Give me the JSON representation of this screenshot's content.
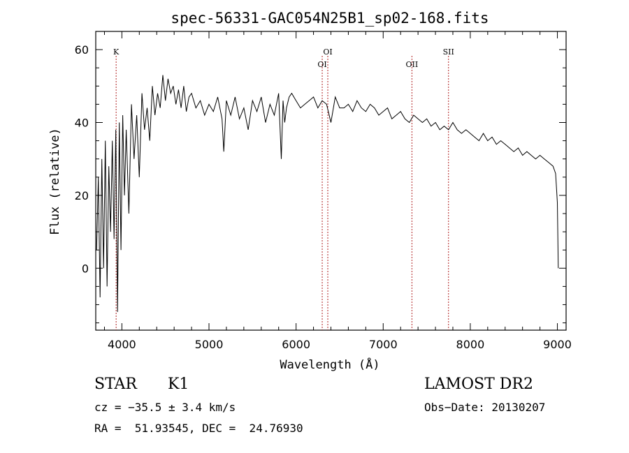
{
  "chart_data": {
    "type": "line",
    "title": "spec-56331-GAC054N25B1_sp02-168.fits",
    "xlabel": "Wavelength (Å)",
    "ylabel": "Flux (relative)",
    "xlim": [
      3700,
      9100
    ],
    "ylim": [
      -17,
      65
    ],
    "x_ticks": [
      4000,
      5000,
      6000,
      7000,
      8000,
      9000
    ],
    "y_ticks": [
      0,
      20,
      40,
      60
    ],
    "x_tick_labels": [
      "4000",
      "5000",
      "6000",
      "7000",
      "8000",
      "9000"
    ],
    "y_tick_labels": [
      "0",
      "20",
      "40",
      "60"
    ],
    "grid": false,
    "series": [
      {
        "x": [
          3710,
          3730,
          3750,
          3770,
          3790,
          3810,
          3830,
          3850,
          3870,
          3890,
          3910,
          3930,
          3950,
          3970,
          3990,
          4010,
          4030,
          4050,
          4080,
          4110,
          4140,
          4170,
          4200,
          4230,
          4260,
          4290,
          4320,
          4350,
          4380,
          4410,
          4440,
          4470,
          4500,
          4530,
          4560,
          4590,
          4620,
          4650,
          4680,
          4710,
          4740,
          4770,
          4800,
          4850,
          4900,
          4950,
          5000,
          5050,
          5100,
          5150,
          5170,
          5200,
          5250,
          5300,
          5350,
          5400,
          5450,
          5500,
          5550,
          5600,
          5650,
          5700,
          5750,
          5800,
          5830,
          5850,
          5870,
          5890,
          5920,
          5950,
          6000,
          6050,
          6100,
          6150,
          6200,
          6250,
          6300,
          6350,
          6400,
          6450,
          6500,
          6550,
          6600,
          6650,
          6700,
          6750,
          6800,
          6850,
          6900,
          6950,
          7000,
          7050,
          7100,
          7150,
          7200,
          7250,
          7300,
          7350,
          7400,
          7450,
          7500,
          7550,
          7600,
          7650,
          7700,
          7750,
          7800,
          7850,
          7900,
          7950,
          8000,
          8050,
          8100,
          8150,
          8200,
          8250,
          8300,
          8350,
          8400,
          8450,
          8500,
          8550,
          8600,
          8650,
          8700,
          8750,
          8800,
          8850,
          8900,
          8950,
          8980,
          9000,
          9010
        ],
        "y": [
          5,
          25,
          -8,
          30,
          0,
          35,
          -5,
          28,
          10,
          35,
          8,
          38,
          -12,
          40,
          5,
          42,
          20,
          38,
          15,
          45,
          30,
          42,
          25,
          48,
          38,
          44,
          35,
          50,
          42,
          48,
          44,
          53,
          46,
          52,
          48,
          50,
          45,
          49,
          44,
          50,
          43,
          47,
          48,
          44,
          46,
          42,
          45,
          43,
          47,
          41,
          32,
          46,
          42,
          47,
          41,
          44,
          38,
          46,
          43,
          47,
          40,
          45,
          42,
          48,
          30,
          46,
          40,
          44,
          47,
          48,
          46,
          44,
          45,
          46,
          47,
          44,
          46,
          45,
          40,
          47,
          44,
          44,
          45,
          43,
          46,
          44,
          43,
          45,
          44,
          42,
          43,
          44,
          41,
          42,
          43,
          41,
          40,
          42,
          41,
          40,
          41,
          39,
          40,
          38,
          39,
          38,
          40,
          38,
          37,
          38,
          37,
          36,
          35,
          37,
          35,
          36,
          34,
          35,
          34,
          33,
          32,
          33,
          31,
          32,
          31,
          30,
          31,
          30,
          29,
          28,
          26,
          18,
          0
        ]
      }
    ],
    "lines": [
      {
        "label": "K",
        "x": 3934
      },
      {
        "label": "OI",
        "x": 6300
      },
      {
        "label": "OI",
        "x": 6364
      },
      {
        "label": "OII",
        "x": 7330
      },
      {
        "label": "SII",
        "x": 7750
      }
    ]
  },
  "info": {
    "class": "STAR",
    "subclass": "K1",
    "survey": "LAMOST DR2",
    "cz": "cz = −35.5 ± 3.4 km/s",
    "obs_date": "Obs−Date: 20130207",
    "coords": "RA =  51.93545, DEC =  24.76930"
  }
}
